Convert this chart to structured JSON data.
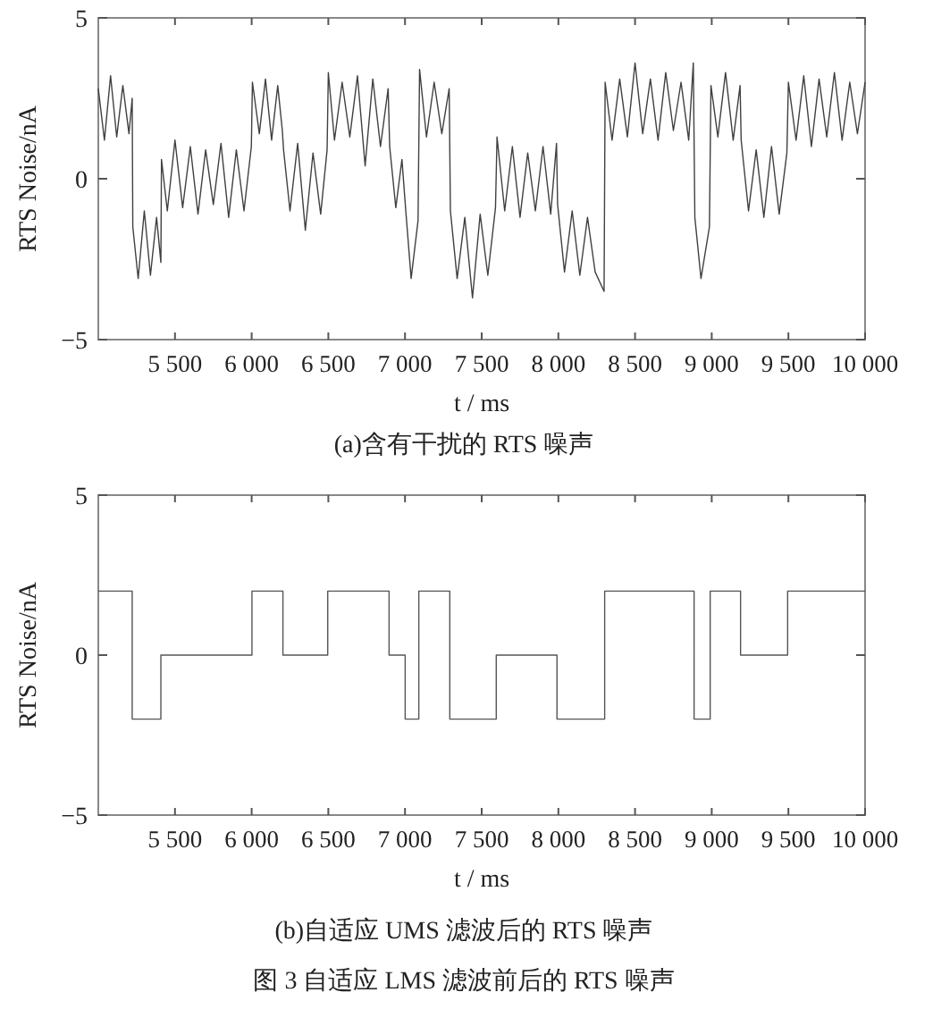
{
  "chart_data": [
    {
      "type": "line",
      "title": "(a)含有干扰的 RTS 噪声",
      "xlabel": "t / ms",
      "ylabel": "RTS  Noise/nA",
      "xlim": [
        5000,
        10000
      ],
      "ylim": [
        -5,
        5
      ],
      "xticks": [
        {
          "value": 5500,
          "label": "5 500"
        },
        {
          "value": 6000,
          "label": "6 000"
        },
        {
          "value": 6500,
          "label": "6 500"
        },
        {
          "value": 7000,
          "label": "7 000"
        },
        {
          "value": 7500,
          "label": "7 500"
        },
        {
          "value": 8000,
          "label": "8 000"
        },
        {
          "value": 8500,
          "label": "8 500"
        },
        {
          "value": 9000,
          "label": "9 000"
        },
        {
          "value": 9500,
          "label": "9 500"
        },
        {
          "value": 10000,
          "label": "10 000"
        }
      ],
      "yticks": [
        {
          "value": -5,
          "label": "−5"
        },
        {
          "value": 0,
          "label": "0"
        },
        {
          "value": 5,
          "label": "5"
        }
      ],
      "series": [
        {
          "color": "#404040",
          "x": [
            5000,
            5040,
            5080,
            5120,
            5160,
            5200,
            5221,
            5225,
            5260,
            5300,
            5340,
            5380,
            5408,
            5412,
            5450,
            5500,
            5550,
            5600,
            5650,
            5700,
            5750,
            5800,
            5850,
            5900,
            5950,
            5998,
            6005,
            6050,
            6090,
            6130,
            6170,
            6200,
            6208,
            6250,
            6300,
            6350,
            6400,
            6450,
            6492,
            6500,
            6540,
            6590,
            6640,
            6690,
            6740,
            6790,
            6840,
            6890,
            6900,
            6940,
            6980,
            7005,
            7040,
            7085,
            7095,
            7140,
            7190,
            7240,
            7288,
            7296,
            7340,
            7390,
            7440,
            7490,
            7540,
            7590,
            7600,
            7650,
            7700,
            7750,
            7800,
            7850,
            7900,
            7950,
            7988,
            7995,
            8040,
            8090,
            8140,
            8190,
            8240,
            8298,
            8305,
            8350,
            8400,
            8450,
            8500,
            8550,
            8600,
            8650,
            8700,
            8750,
            8800,
            8850,
            8880,
            8890,
            8930,
            8985,
            8995,
            9040,
            9090,
            9140,
            9185,
            9192,
            9240,
            9290,
            9340,
            9390,
            9440,
            9490,
            9500,
            9550,
            9600,
            9650,
            9700,
            9750,
            9800,
            9850,
            9900,
            9950,
            10000
          ],
          "values": [
            2.8,
            1.2,
            3.2,
            1.3,
            2.9,
            1.4,
            2.5,
            -1.5,
            -3.1,
            -1.0,
            -3.0,
            -1.2,
            -2.6,
            0.6,
            -1.0,
            1.2,
            -0.9,
            1.0,
            -1.1,
            0.9,
            -0.8,
            1.1,
            -1.2,
            0.9,
            -1.0,
            1.0,
            3.0,
            1.4,
            3.1,
            1.2,
            2.9,
            1.5,
            0.9,
            -1.0,
            1.1,
            -1.6,
            0.8,
            -1.1,
            0.9,
            3.3,
            1.2,
            3.0,
            1.3,
            3.2,
            0.4,
            3.1,
            1.0,
            2.8,
            1.0,
            -0.9,
            0.6,
            -1.0,
            -3.1,
            -1.3,
            3.4,
            1.3,
            3.0,
            1.4,
            2.8,
            -1.0,
            -3.1,
            -1.2,
            -3.7,
            -1.1,
            -3.0,
            -0.9,
            1.3,
            -1.0,
            1.0,
            -1.2,
            0.8,
            -1.0,
            1.0,
            -1.1,
            1.1,
            -0.8,
            -2.9,
            -1.0,
            -3.0,
            -1.2,
            -2.9,
            -3.5,
            3.0,
            1.2,
            3.1,
            1.3,
            3.6,
            1.4,
            3.1,
            1.2,
            3.3,
            1.5,
            3.0,
            1.2,
            3.6,
            -1.2,
            -3.1,
            -1.5,
            2.9,
            1.3,
            3.3,
            1.2,
            2.9,
            1.2,
            -1.0,
            0.9,
            -1.2,
            1.0,
            -1.1,
            0.8,
            3.0,
            1.2,
            3.2,
            1.0,
            3.1,
            1.3,
            3.3,
            1.2,
            3.0,
            1.4,
            3.0
          ]
        }
      ]
    },
    {
      "type": "line",
      "title": "(b)自适应 UMS 滤波后的 RTS 噪声",
      "xlabel": "t / ms",
      "ylabel": "RTS  Noise/nA",
      "annotations": [
        "图 3  自适应 LMS 滤波前后的 RTS 噪声"
      ],
      "xlim": [
        5000,
        10000
      ],
      "ylim": [
        -5,
        5
      ],
      "xticks": [
        {
          "value": 5500,
          "label": "5 500"
        },
        {
          "value": 6000,
          "label": "6 000"
        },
        {
          "value": 6500,
          "label": "6 500"
        },
        {
          "value": 7000,
          "label": "7 000"
        },
        {
          "value": 7500,
          "label": "7 500"
        },
        {
          "value": 8000,
          "label": "8 000"
        },
        {
          "value": 8500,
          "label": "8 500"
        },
        {
          "value": 9000,
          "label": "9 000"
        },
        {
          "value": 9500,
          "label": "9 500"
        },
        {
          "value": 10000,
          "label": "10 000"
        }
      ],
      "yticks": [
        {
          "value": -5,
          "label": "−5"
        },
        {
          "value": 0,
          "label": "0"
        },
        {
          "value": 5,
          "label": "5"
        }
      ],
      "series": [
        {
          "color": "#555555",
          "x": [
            5000,
            5221,
            5221,
            5408,
            5408,
            6002,
            6002,
            6204,
            6204,
            6496,
            6496,
            6896,
            6896,
            7001,
            7001,
            7090,
            7090,
            7292,
            7292,
            7595,
            7595,
            7991,
            7991,
            8302,
            8302,
            8885,
            8885,
            8990,
            8990,
            9188,
            9188,
            9495,
            9495,
            10000
          ],
          "values": [
            2,
            2,
            -2,
            -2,
            0,
            0,
            2,
            2,
            0,
            0,
            2,
            2,
            0,
            0,
            -2,
            -2,
            2,
            2,
            -2,
            -2,
            0,
            0,
            -2,
            -2,
            2,
            2,
            -2,
            -2,
            2,
            2,
            0,
            0,
            2,
            2
          ]
        }
      ]
    }
  ]
}
